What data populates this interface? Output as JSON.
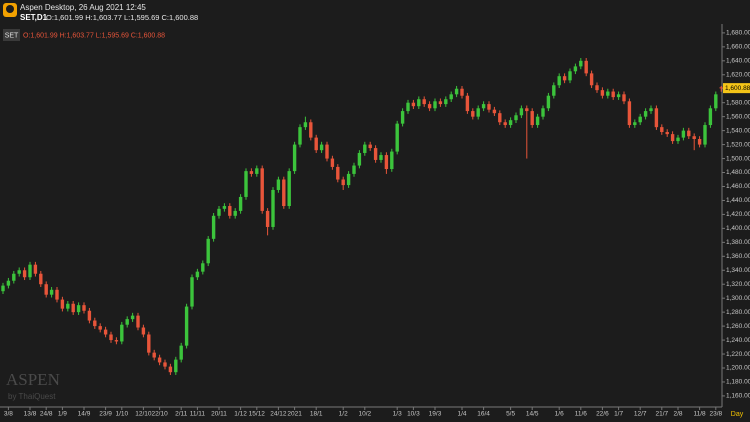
{
  "chart_data": {
    "type": "candlestick",
    "title": "Aspen Desktop, 26 Aug 2021 12:45",
    "symbol": "SET,D1",
    "ohlc_text": "O:1,601.99 H:1,603.77 L:1,595.69 C:1,600.88",
    "legend_symbol": "SET",
    "watermark": "ASPEN",
    "watermark_sub": "by ThaiQuest",
    "period_label": "Day",
    "last_price_label": "1,600.88",
    "up_color": "#3cc43c",
    "down_color": "#e8553a",
    "ylim": [
      1147,
      1687
    ],
    "yticks": [
      {
        "value": 1160,
        "label": "1,160.00"
      },
      {
        "value": 1180,
        "label": "1,180.00"
      },
      {
        "value": 1200,
        "label": "1,200.00"
      },
      {
        "value": 1220,
        "label": "1,220.00"
      },
      {
        "value": 1240,
        "label": "1,240.00"
      },
      {
        "value": 1260,
        "label": "1,260.00"
      },
      {
        "value": 1280,
        "label": "1,280.00"
      },
      {
        "value": 1300,
        "label": "1,300.00"
      },
      {
        "value": 1320,
        "label": "1,320.00"
      },
      {
        "value": 1340,
        "label": "1,340.00"
      },
      {
        "value": 1360,
        "label": "1,360.00"
      },
      {
        "value": 1380,
        "label": "1,380.00"
      },
      {
        "value": 1400,
        "label": "1,400.00"
      },
      {
        "value": 1420,
        "label": "1,420.00"
      },
      {
        "value": 1440,
        "label": "1,440.00"
      },
      {
        "value": 1460,
        "label": "1,460.00"
      },
      {
        "value": 1480,
        "label": "1,480.00"
      },
      {
        "value": 1500,
        "label": "1,500.00"
      },
      {
        "value": 1520,
        "label": "1,520.00"
      },
      {
        "value": 1540,
        "label": "1,540.00"
      },
      {
        "value": 1560,
        "label": "1,560.00"
      },
      {
        "value": 1580,
        "label": "1,580.00"
      },
      {
        "value": 1600,
        "label": "1,600.00"
      },
      {
        "value": 1620,
        "label": "1,620.00"
      },
      {
        "value": 1640,
        "label": "1,640.00"
      },
      {
        "value": 1660,
        "label": "1,660.00"
      },
      {
        "value": 1680,
        "label": "1,680.00"
      }
    ],
    "categories": [
      null,
      "3/8",
      null,
      null,
      null,
      "13/8",
      null,
      null,
      "24/8",
      null,
      null,
      "1/9",
      null,
      null,
      null,
      "14/9",
      null,
      null,
      null,
      "23/9",
      null,
      null,
      "1/10",
      null,
      null,
      null,
      "12/10",
      null,
      null,
      "22/10",
      null,
      null,
      null,
      "2/11",
      null,
      null,
      "11/11",
      null,
      null,
      null,
      "20/11",
      null,
      null,
      null,
      "1/12",
      null,
      null,
      "15/12",
      null,
      null,
      null,
      "24/12",
      null,
      null,
      "2021",
      null,
      null,
      null,
      "18/1",
      null,
      null,
      null,
      null,
      "1/2",
      null,
      null,
      null,
      "10/2",
      null,
      null,
      null,
      null,
      null,
      "1/3",
      null,
      null,
      "10/3",
      null,
      null,
      null,
      "19/3",
      null,
      null,
      null,
      null,
      "1/4",
      null,
      null,
      null,
      "16/4",
      null,
      null,
      null,
      null,
      "5/5",
      null,
      null,
      null,
      "14/5",
      null,
      null,
      null,
      null,
      "1/6",
      null,
      null,
      null,
      "11/6",
      null,
      null,
      null,
      "22/6",
      null,
      null,
      "1/7",
      null,
      null,
      null,
      "12/7",
      null,
      null,
      null,
      "21/7",
      null,
      null,
      "2/8",
      null,
      null,
      null,
      "11/8",
      null,
      null,
      "23/8",
      null
    ],
    "ohlc": [
      [
        1310,
        1322,
        1306,
        1318
      ],
      [
        1318,
        1329,
        1314,
        1325
      ],
      [
        1325,
        1339,
        1321,
        1335
      ],
      [
        1335,
        1344,
        1331,
        1340
      ],
      [
        1340,
        1344,
        1326,
        1330
      ],
      [
        1330,
        1352,
        1326,
        1348
      ],
      [
        1348,
        1352,
        1331,
        1335
      ],
      [
        1335,
        1339,
        1316,
        1320
      ],
      [
        1320,
        1324,
        1301,
        1305
      ],
      [
        1305,
        1316,
        1301,
        1312
      ],
      [
        1312,
        1316,
        1294,
        1298
      ],
      [
        1298,
        1302,
        1281,
        1285
      ],
      [
        1285,
        1296,
        1281,
        1292
      ],
      [
        1292,
        1296,
        1276,
        1280
      ],
      [
        1280,
        1294,
        1276,
        1290
      ],
      [
        1290,
        1294,
        1278,
        1282
      ],
      [
        1282,
        1286,
        1264,
        1268
      ],
      [
        1268,
        1272,
        1256,
        1260
      ],
      [
        1260,
        1264,
        1251,
        1255
      ],
      [
        1255,
        1259,
        1244,
        1248
      ],
      [
        1248,
        1252,
        1236,
        1240
      ],
      [
        1240,
        1244,
        1234,
        1238
      ],
      [
        1238,
        1266,
        1234,
        1262
      ],
      [
        1262,
        1274,
        1258,
        1270
      ],
      [
        1270,
        1279,
        1266,
        1275
      ],
      [
        1275,
        1279,
        1254,
        1258
      ],
      [
        1258,
        1262,
        1244,
        1248
      ],
      [
        1248,
        1252,
        1218,
        1222
      ],
      [
        1222,
        1226,
        1211,
        1215
      ],
      [
        1215,
        1219,
        1204,
        1208
      ],
      [
        1208,
        1212,
        1198,
        1202
      ],
      [
        1202,
        1206,
        1190,
        1194
      ],
      [
        1194,
        1216,
        1190,
        1212
      ],
      [
        1212,
        1236,
        1208,
        1232
      ],
      [
        1232,
        1292,
        1228,
        1288
      ],
      [
        1288,
        1334,
        1284,
        1330
      ],
      [
        1330,
        1342,
        1326,
        1338
      ],
      [
        1338,
        1354,
        1334,
        1350
      ],
      [
        1350,
        1389,
        1346,
        1385
      ],
      [
        1385,
        1422,
        1381,
        1418
      ],
      [
        1418,
        1432,
        1414,
        1428
      ],
      [
        1428,
        1436,
        1424,
        1432
      ],
      [
        1432,
        1436,
        1414,
        1418
      ],
      [
        1418,
        1429,
        1414,
        1425
      ],
      [
        1425,
        1449,
        1421,
        1445
      ],
      [
        1445,
        1486,
        1441,
        1482
      ],
      [
        1482,
        1486,
        1474,
        1478
      ],
      [
        1478,
        1490,
        1474,
        1486
      ],
      [
        1486,
        1490,
        1421,
        1425
      ],
      [
        1425,
        1429,
        1390,
        1402
      ],
      [
        1402,
        1459,
        1398,
        1455
      ],
      [
        1455,
        1474,
        1451,
        1470
      ],
      [
        1470,
        1474,
        1428,
        1432
      ],
      [
        1432,
        1486,
        1428,
        1482
      ],
      [
        1482,
        1524,
        1478,
        1520
      ],
      [
        1520,
        1549,
        1516,
        1545
      ],
      [
        1545,
        1560,
        1541,
        1552
      ],
      [
        1552,
        1556,
        1526,
        1530
      ],
      [
        1530,
        1534,
        1508,
        1512
      ],
      [
        1512,
        1524,
        1508,
        1520
      ],
      [
        1520,
        1524,
        1496,
        1500
      ],
      [
        1500,
        1504,
        1484,
        1488
      ],
      [
        1488,
        1492,
        1466,
        1470
      ],
      [
        1470,
        1474,
        1455,
        1462
      ],
      [
        1462,
        1482,
        1458,
        1478
      ],
      [
        1478,
        1494,
        1474,
        1490
      ],
      [
        1490,
        1512,
        1486,
        1508
      ],
      [
        1508,
        1524,
        1504,
        1520
      ],
      [
        1520,
        1524,
        1511,
        1515
      ],
      [
        1515,
        1519,
        1494,
        1498
      ],
      [
        1498,
        1509,
        1494,
        1505
      ],
      [
        1505,
        1509,
        1478,
        1485
      ],
      [
        1485,
        1514,
        1481,
        1510
      ],
      [
        1510,
        1554,
        1506,
        1550
      ],
      [
        1550,
        1572,
        1546,
        1568
      ],
      [
        1568,
        1584,
        1564,
        1580
      ],
      [
        1580,
        1584,
        1571,
        1575
      ],
      [
        1575,
        1589,
        1571,
        1585
      ],
      [
        1585,
        1589,
        1574,
        1578
      ],
      [
        1578,
        1582,
        1568,
        1572
      ],
      [
        1572,
        1586,
        1568,
        1582
      ],
      [
        1582,
        1586,
        1574,
        1578
      ],
      [
        1578,
        1589,
        1574,
        1585
      ],
      [
        1585,
        1596,
        1581,
        1592
      ],
      [
        1592,
        1604,
        1588,
        1600
      ],
      [
        1600,
        1604,
        1586,
        1590
      ],
      [
        1590,
        1594,
        1564,
        1568
      ],
      [
        1568,
        1572,
        1556,
        1560
      ],
      [
        1560,
        1576,
        1556,
        1572
      ],
      [
        1572,
        1582,
        1568,
        1578
      ],
      [
        1578,
        1582,
        1566,
        1570
      ],
      [
        1570,
        1574,
        1561,
        1565
      ],
      [
        1565,
        1569,
        1548,
        1552
      ],
      [
        1552,
        1556,
        1544,
        1548
      ],
      [
        1548,
        1559,
        1544,
        1555
      ],
      [
        1555,
        1566,
        1551,
        1562
      ],
      [
        1562,
        1576,
        1558,
        1572
      ],
      [
        1572,
        1576,
        1500,
        1568
      ],
      [
        1568,
        1572,
        1544,
        1548
      ],
      [
        1548,
        1564,
        1544,
        1560
      ],
      [
        1560,
        1576,
        1556,
        1572
      ],
      [
        1572,
        1594,
        1568,
        1590
      ],
      [
        1590,
        1609,
        1586,
        1605
      ],
      [
        1605,
        1622,
        1601,
        1618
      ],
      [
        1618,
        1622,
        1608,
        1612
      ],
      [
        1612,
        1629,
        1608,
        1625
      ],
      [
        1625,
        1636,
        1621,
        1632
      ],
      [
        1632,
        1644,
        1628,
        1640
      ],
      [
        1640,
        1644,
        1618,
        1622
      ],
      [
        1622,
        1626,
        1601,
        1605
      ],
      [
        1605,
        1609,
        1594,
        1598
      ],
      [
        1598,
        1602,
        1586,
        1590
      ],
      [
        1590,
        1600,
        1586,
        1596
      ],
      [
        1596,
        1600,
        1584,
        1588
      ],
      [
        1588,
        1596,
        1584,
        1592
      ],
      [
        1592,
        1596,
        1578,
        1582
      ],
      [
        1582,
        1586,
        1544,
        1548
      ],
      [
        1548,
        1556,
        1544,
        1552
      ],
      [
        1552,
        1564,
        1548,
        1560
      ],
      [
        1560,
        1572,
        1556,
        1568
      ],
      [
        1568,
        1576,
        1564,
        1572
      ],
      [
        1572,
        1576,
        1541,
        1545
      ],
      [
        1545,
        1549,
        1534,
        1538
      ],
      [
        1538,
        1542,
        1531,
        1535
      ],
      [
        1535,
        1539,
        1521,
        1525
      ],
      [
        1525,
        1534,
        1521,
        1530
      ],
      [
        1530,
        1544,
        1526,
        1540
      ],
      [
        1540,
        1544,
        1528,
        1532
      ],
      [
        1532,
        1536,
        1512,
        1528
      ],
      [
        1528,
        1532,
        1516,
        1520
      ],
      [
        1520,
        1552,
        1516,
        1548
      ],
      [
        1548,
        1576,
        1544,
        1572
      ],
      [
        1572,
        1596,
        1568,
        1592
      ],
      [
        1601.99,
        1603.77,
        1595.69,
        1600.88
      ]
    ]
  }
}
